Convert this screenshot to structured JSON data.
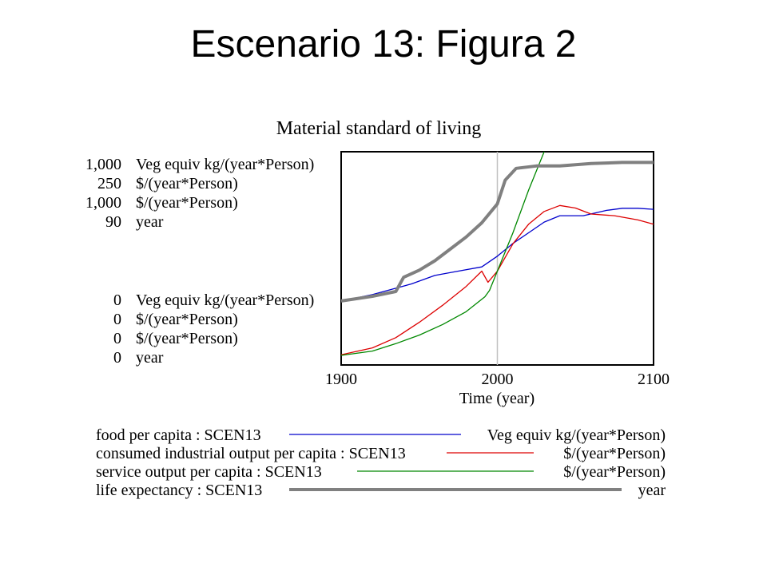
{
  "slide_title": "Escenario 13: Figura 2",
  "chart_data": {
    "type": "line",
    "title": "Material standard of living",
    "xlabel": "Time (year)",
    "x_ticks": [
      "1900",
      "2000",
      "2100"
    ],
    "xlim": [
      1900,
      2100
    ],
    "axis_max_labels": [
      {
        "value": "1,000",
        "unit": "Veg equiv kg/(year*Person)"
      },
      {
        "value": "250",
        "unit": "$/(year*Person)"
      },
      {
        "value": "1,000",
        "unit": "$/(year*Person)"
      },
      {
        "value": "90",
        "unit": "year"
      }
    ],
    "axis_min_labels": [
      {
        "value": "0",
        "unit": "Veg equiv kg/(year*Person)"
      },
      {
        "value": "0",
        "unit": "$/(year*Person)"
      },
      {
        "value": "0",
        "unit": "$/(year*Person)"
      },
      {
        "value": "0",
        "unit": "year"
      }
    ],
    "series": [
      {
        "name": "food per capita : SCEN13",
        "unit": "Veg equiv kg/(year*Person)",
        "color": "#0000cc",
        "ymax": 1000,
        "points": [
          [
            1900,
            300
          ],
          [
            1920,
            330
          ],
          [
            1935,
            360
          ],
          [
            1945,
            380
          ],
          [
            1960,
            420
          ],
          [
            1975,
            440
          ],
          [
            1990,
            460
          ],
          [
            2000,
            510
          ],
          [
            2010,
            570
          ],
          [
            2020,
            620
          ],
          [
            2030,
            670
          ],
          [
            2040,
            700
          ],
          [
            2055,
            700
          ],
          [
            2070,
            725
          ],
          [
            2080,
            735
          ],
          [
            2090,
            735
          ],
          [
            2100,
            730
          ]
        ]
      },
      {
        "name": "consumed industrial output per capita : SCEN13",
        "unit": "$/(year*Person)",
        "color": "#dd0000",
        "ymax": 250,
        "points": [
          [
            1900,
            12
          ],
          [
            1920,
            20
          ],
          [
            1935,
            32
          ],
          [
            1950,
            50
          ],
          [
            1965,
            70
          ],
          [
            1980,
            92
          ],
          [
            1990,
            110
          ],
          [
            1994,
            97
          ],
          [
            2000,
            110
          ],
          [
            2010,
            142
          ],
          [
            2020,
            165
          ],
          [
            2030,
            180
          ],
          [
            2040,
            187
          ],
          [
            2050,
            184
          ],
          [
            2060,
            177
          ],
          [
            2075,
            175
          ],
          [
            2090,
            170
          ],
          [
            2100,
            165
          ]
        ]
      },
      {
        "name": "service output per capita : SCEN13",
        "unit": "$/(year*Person)",
        "color": "#008800",
        "ymax": 1000,
        "points": [
          [
            1900,
            45
          ],
          [
            1920,
            65
          ],
          [
            1935,
            100
          ],
          [
            1950,
            140
          ],
          [
            1965,
            190
          ],
          [
            1980,
            250
          ],
          [
            1992,
            320
          ],
          [
            1995,
            350
          ],
          [
            2000,
            440
          ],
          [
            2010,
            620
          ],
          [
            2020,
            820
          ],
          [
            2030,
            1000
          ]
        ]
      },
      {
        "name": "life expectancy : SCEN13",
        "unit": "year",
        "color": "#808080",
        "ymax": 90,
        "points": [
          [
            1900,
            27
          ],
          [
            1920,
            29
          ],
          [
            1935,
            31
          ],
          [
            1940,
            37
          ],
          [
            1950,
            40
          ],
          [
            1960,
            44
          ],
          [
            1970,
            49
          ],
          [
            1980,
            54
          ],
          [
            1990,
            60
          ],
          [
            2000,
            68
          ],
          [
            2005,
            78
          ],
          [
            2012,
            83
          ],
          [
            2025,
            84
          ],
          [
            2040,
            84
          ],
          [
            2050,
            84.5
          ],
          [
            2060,
            85
          ],
          [
            2080,
            85.5
          ],
          [
            2100,
            85.5
          ]
        ]
      }
    ]
  }
}
